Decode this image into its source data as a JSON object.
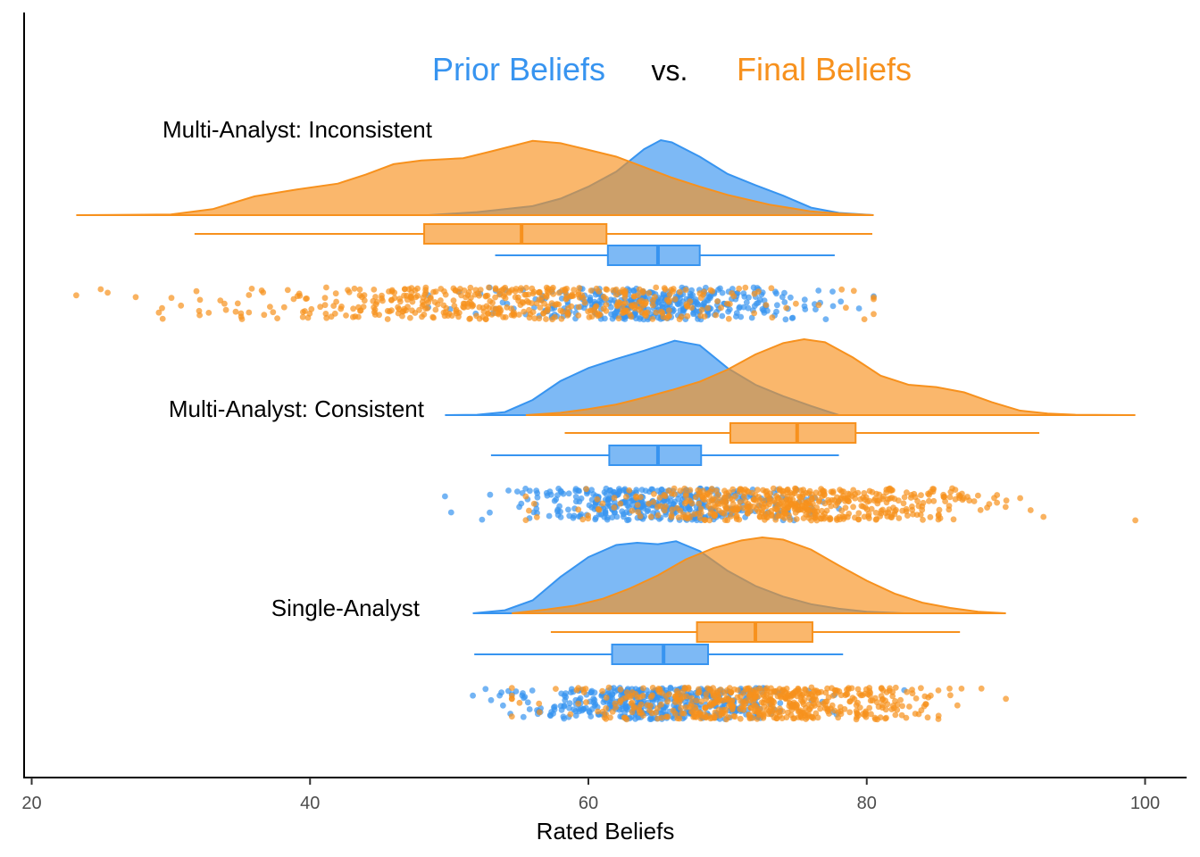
{
  "chart_data": {
    "type": "raincloud",
    "title_parts": {
      "prior": "Prior Beliefs",
      "vs": "vs.",
      "final": "Final Beliefs"
    },
    "xlabel": "Rated Beliefs",
    "xlim": [
      20,
      100
    ],
    "xticks": [
      20,
      40,
      60,
      80,
      100
    ],
    "legend": "none",
    "grid": false,
    "colors": {
      "prior": "#3794F0",
      "final": "#F7911D"
    },
    "groups": [
      {
        "label": "Multi-Analyst: Inconsistent",
        "prior": {
          "range": [
            48.5,
            80.5
          ],
          "box": {
            "min": 53.3,
            "q1": 61.4,
            "median": 65.0,
            "q3": 68.0,
            "max": 77.7
          },
          "density_x": [
            48.5,
            52,
            56,
            58,
            60,
            62,
            64,
            65.2,
            66,
            68,
            70,
            72,
            74,
            76,
            78,
            80.5
          ],
          "density_y": [
            0,
            0.04,
            0.12,
            0.22,
            0.38,
            0.58,
            0.88,
            1.0,
            0.97,
            0.78,
            0.55,
            0.4,
            0.26,
            0.1,
            0.03,
            0
          ],
          "points": {
            "seed": 11,
            "n": 380,
            "mean": 65.0,
            "sd": 5.3,
            "min": 48.5,
            "max": 80.5
          }
        },
        "final": {
          "range": [
            23.2,
            80.5
          ],
          "box": {
            "min": 31.7,
            "q1": 48.2,
            "median": 55.2,
            "q3": 61.3,
            "max": 80.4
          },
          "density_x": [
            23.2,
            27,
            30,
            33,
            36,
            39,
            42,
            44,
            46,
            48,
            51,
            53,
            56,
            58,
            60,
            62,
            64,
            66,
            68,
            70,
            73,
            76,
            78,
            80.5
          ],
          "density_y": [
            0,
            0.005,
            0.01,
            0.08,
            0.25,
            0.34,
            0.42,
            0.54,
            0.68,
            0.73,
            0.76,
            0.85,
            0.99,
            0.96,
            0.87,
            0.78,
            0.64,
            0.5,
            0.38,
            0.27,
            0.14,
            0.05,
            0.02,
            0
          ],
          "points": {
            "seed": 23,
            "n": 480,
            "mean": 54.0,
            "sd": 9.8,
            "min": 23.2,
            "max": 80.5
          }
        }
      },
      {
        "label": "Multi-Analyst: Consistent",
        "prior": {
          "range": [
            49.7,
            78.0
          ],
          "box": {
            "min": 53.0,
            "q1": 61.5,
            "median": 65.0,
            "q3": 68.1,
            "max": 78.0
          },
          "density_x": [
            49.7,
            52,
            54,
            56,
            58,
            60,
            62,
            64,
            66.2,
            68,
            70,
            72,
            74,
            76,
            78
          ],
          "density_y": [
            0,
            0.005,
            0.04,
            0.2,
            0.45,
            0.62,
            0.74,
            0.85,
            0.98,
            0.92,
            0.62,
            0.4,
            0.25,
            0.12,
            0
          ],
          "points": {
            "seed": 37,
            "n": 400,
            "mean": 65.0,
            "sd": 5.3,
            "min": 49.7,
            "max": 78.0
          }
        },
        "final": {
          "range": [
            55.5,
            99.3
          ],
          "box": {
            "min": 58.3,
            "q1": 70.2,
            "median": 75.0,
            "q3": 79.2,
            "max": 92.4
          },
          "density_x": [
            55.5,
            58,
            60,
            62,
            64,
            66,
            68,
            70,
            72,
            74,
            75.5,
            77,
            79,
            81,
            83,
            85,
            87,
            89,
            91,
            93,
            95,
            99.3
          ],
          "density_y": [
            0,
            0.03,
            0.08,
            0.14,
            0.23,
            0.33,
            0.44,
            0.6,
            0.8,
            0.95,
            1.0,
            0.96,
            0.76,
            0.52,
            0.4,
            0.37,
            0.3,
            0.17,
            0.06,
            0.02,
            0.005,
            0
          ],
          "points": {
            "seed": 41,
            "n": 520,
            "mean": 75.0,
            "sd": 6.6,
            "min": 55.5,
            "max": 99.3
          }
        }
      },
      {
        "label": "Single-Analyst",
        "prior": {
          "range": [
            51.7,
            82.7
          ],
          "box": {
            "min": 51.8,
            "q1": 61.7,
            "median": 65.4,
            "q3": 68.6,
            "max": 78.3
          },
          "density_x": [
            51.7,
            54,
            56,
            58,
            60,
            62,
            63.5,
            65,
            66.3,
            68,
            70,
            72,
            74,
            76,
            78,
            80,
            82.7
          ],
          "density_y": [
            0,
            0.04,
            0.17,
            0.48,
            0.74,
            0.9,
            0.93,
            0.91,
            0.95,
            0.82,
            0.56,
            0.36,
            0.22,
            0.12,
            0.06,
            0.02,
            0
          ],
          "points": {
            "seed": 53,
            "n": 450,
            "mean": 65.3,
            "sd": 5.0,
            "min": 51.7,
            "max": 82.7
          }
        },
        "final": {
          "range": [
            54.5,
            90.0
          ],
          "box": {
            "min": 57.3,
            "q1": 67.8,
            "median": 72.0,
            "q3": 76.1,
            "max": 86.7
          },
          "density_x": [
            54.5,
            57,
            59,
            61,
            63,
            65,
            67,
            69,
            71,
            72.5,
            74,
            76,
            78,
            80,
            82,
            84,
            86,
            88,
            90
          ],
          "density_y": [
            0,
            0.05,
            0.1,
            0.19,
            0.33,
            0.5,
            0.71,
            0.86,
            0.96,
            1.0,
            0.97,
            0.84,
            0.63,
            0.43,
            0.26,
            0.14,
            0.07,
            0.02,
            0
          ],
          "points": {
            "seed": 67,
            "n": 540,
            "mean": 72.0,
            "sd": 6.0,
            "min": 54.5,
            "max": 90.0
          }
        }
      }
    ]
  }
}
